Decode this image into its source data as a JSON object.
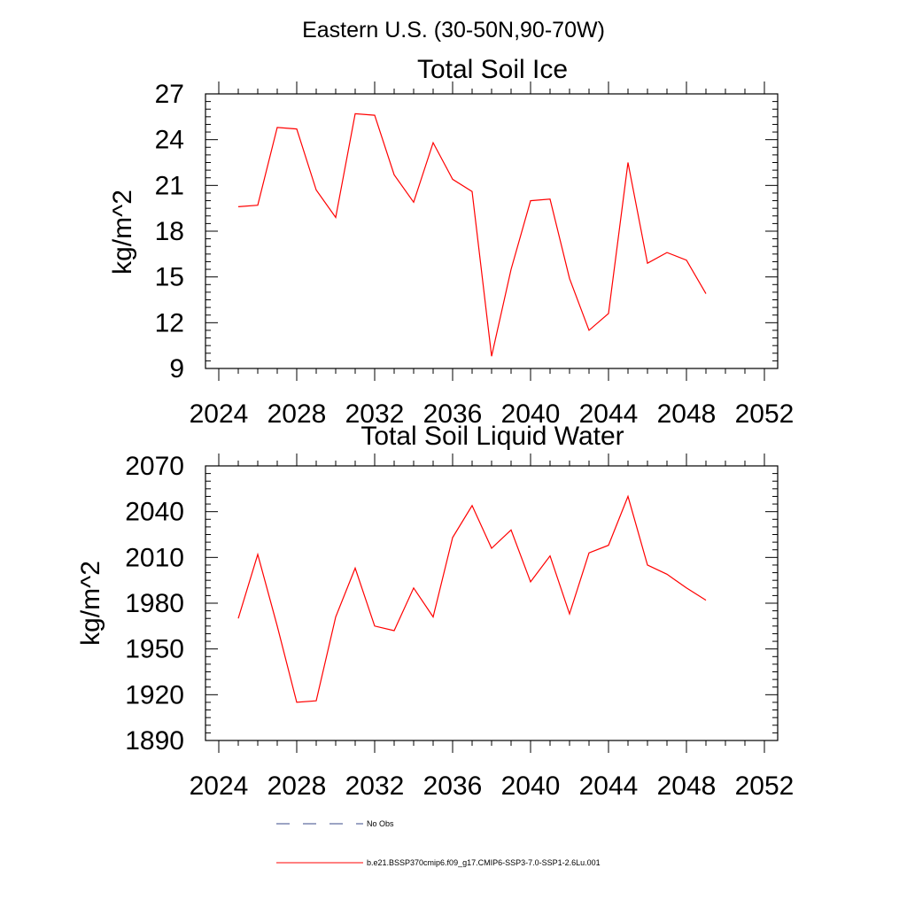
{
  "figure": {
    "title": "Eastern U.S. (30-50N,90-70W)"
  },
  "chart_data": [
    {
      "type": "line",
      "title": "Total Soil Ice",
      "xlabel": "",
      "ylabel": "kg/m^2",
      "xlim": [
        2024,
        2052
      ],
      "ylim": [
        9,
        27
      ],
      "xticks": [
        2024,
        2028,
        2032,
        2036,
        2040,
        2044,
        2048,
        2052
      ],
      "yticks": [
        9,
        12,
        15,
        18,
        21,
        24,
        27
      ],
      "x": [
        2025,
        2026,
        2027,
        2028,
        2029,
        2030,
        2031,
        2032,
        2033,
        2034,
        2035,
        2036,
        2037,
        2038,
        2039,
        2040,
        2041,
        2042,
        2043,
        2044,
        2045,
        2046,
        2047,
        2048,
        2049
      ],
      "series": [
        {
          "name": "b.e21.BSSP370cmip6.f09_g17.CMIP6-SSP3-7.0-SSP1-2.6Lu.001",
          "color": "#ff0000",
          "values": [
            19.6,
            19.7,
            24.8,
            24.7,
            20.7,
            18.9,
            25.7,
            25.6,
            21.7,
            19.9,
            23.8,
            21.4,
            20.6,
            9.8,
            15.5,
            20.0,
            20.1,
            14.9,
            11.5,
            12.6,
            22.5,
            15.9,
            16.6,
            16.1,
            13.9
          ]
        }
      ]
    },
    {
      "type": "line",
      "title": "Total Soil Liquid Water",
      "xlabel": "",
      "ylabel": "kg/m^2",
      "xlim": [
        2024,
        2052
      ],
      "ylim": [
        1890,
        2070
      ],
      "xticks": [
        2024,
        2028,
        2032,
        2036,
        2040,
        2044,
        2048,
        2052
      ],
      "yticks": [
        1890,
        1920,
        1950,
        1980,
        2010,
        2040,
        2070
      ],
      "x": [
        2025,
        2026,
        2027,
        2028,
        2029,
        2030,
        2031,
        2032,
        2033,
        2034,
        2035,
        2036,
        2037,
        2038,
        2039,
        2040,
        2041,
        2042,
        2043,
        2044,
        2045,
        2046,
        2047,
        2048,
        2049
      ],
      "series": [
        {
          "name": "b.e21.BSSP370cmip6.f09_g17.CMIP6-SSP3-7.0-SSP1-2.6Lu.001",
          "color": "#ff0000",
          "values": [
            1970,
            2012,
            1965,
            1915,
            1916,
            1971,
            2003,
            1965,
            1962,
            1990,
            1971,
            2023,
            2044,
            2016,
            2028,
            1994,
            2011,
            1973,
            2013,
            2018,
            2050,
            2005,
            1999,
            1990,
            1982
          ]
        }
      ]
    }
  ],
  "legend": {
    "items": [
      {
        "label": "No Obs",
        "color": "#3a4a8a",
        "dash": "dashed"
      },
      {
        "label": "b.e21.BSSP370cmip6.f09_g17.CMIP6-SSP3-7.0-SSP1-2.6Lu.001",
        "color": "#ff0000",
        "dash": "solid"
      }
    ]
  }
}
